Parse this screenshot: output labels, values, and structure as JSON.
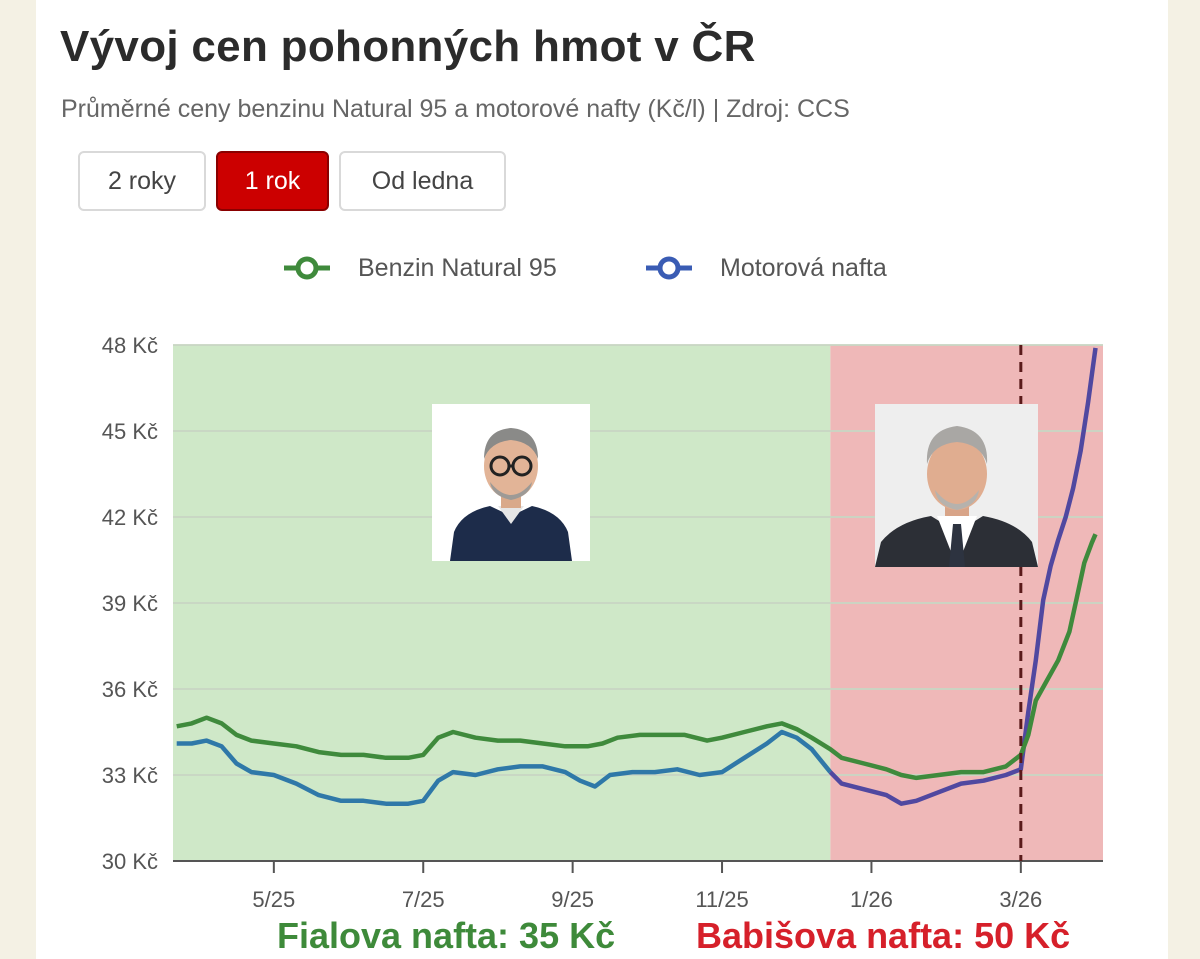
{
  "title": "Vývoj cen pohonných hmot v ČR",
  "subtitle": "Průměrné ceny benzinu Natural 95 a motorové nafty (Kč/l) | Zdroj: CCS",
  "range_buttons": [
    {
      "label": "2 roky",
      "active": false
    },
    {
      "label": "1 rok",
      "active": true
    },
    {
      "label": "Od ledna",
      "active": false
    }
  ],
  "colors": {
    "benzin": "#3f8a3c",
    "nafta_before": "#2f78a8",
    "nafta_after": "#5048a0",
    "green_zone": "#cfe8c8",
    "red_zone": "#efb8b8",
    "accent_button": "#cc0000",
    "dashed_marker": "#5a1a1a"
  },
  "captions": {
    "left": "Fialova nafta: 35 Kč",
    "right": "Babišova nafta: 50 Kč"
  },
  "chart_data": {
    "type": "line",
    "title": "Vývoj cen pohonných hmot v ČR",
    "xlabel": "",
    "ylabel": "",
    "ylim": [
      30,
      48
    ],
    "y_ticks": [
      30,
      33,
      36,
      39,
      42,
      45,
      48
    ],
    "y_tick_suffix": " Kč",
    "x_ticks": [
      "5/25",
      "7/25",
      "9/25",
      "11/25",
      "1/26",
      "3/26"
    ],
    "x_tick_months": [
      4,
      6,
      8,
      10,
      12,
      14
    ],
    "xlim_months": [
      2.65,
      15.1
    ],
    "legend_position": "top-center",
    "grid": true,
    "shaded_periods": [
      {
        "from_month": 2.65,
        "to_month": 11.45,
        "color": "green"
      },
      {
        "from_month": 11.45,
        "to_month": 15.1,
        "color": "red"
      }
    ],
    "marker_month": 14.0,
    "series": [
      {
        "name": "Benzin Natural 95",
        "points": [
          [
            2.7,
            34.7
          ],
          [
            2.9,
            34.8
          ],
          [
            3.1,
            35.0
          ],
          [
            3.3,
            34.8
          ],
          [
            3.5,
            34.4
          ],
          [
            3.7,
            34.2
          ],
          [
            4.0,
            34.1
          ],
          [
            4.3,
            34.0
          ],
          [
            4.6,
            33.8
          ],
          [
            4.9,
            33.7
          ],
          [
            5.2,
            33.7
          ],
          [
            5.5,
            33.6
          ],
          [
            5.8,
            33.6
          ],
          [
            6.0,
            33.7
          ],
          [
            6.2,
            34.3
          ],
          [
            6.4,
            34.5
          ],
          [
            6.7,
            34.3
          ],
          [
            7.0,
            34.2
          ],
          [
            7.3,
            34.2
          ],
          [
            7.6,
            34.1
          ],
          [
            7.9,
            34.0
          ],
          [
            8.2,
            34.0
          ],
          [
            8.4,
            34.1
          ],
          [
            8.6,
            34.3
          ],
          [
            8.9,
            34.4
          ],
          [
            9.2,
            34.4
          ],
          [
            9.5,
            34.4
          ],
          [
            9.8,
            34.2
          ],
          [
            10.0,
            34.3
          ],
          [
            10.3,
            34.5
          ],
          [
            10.6,
            34.7
          ],
          [
            10.8,
            34.8
          ],
          [
            11.0,
            34.6
          ],
          [
            11.2,
            34.3
          ],
          [
            11.45,
            33.9
          ],
          [
            11.6,
            33.6
          ],
          [
            11.9,
            33.4
          ],
          [
            12.2,
            33.2
          ],
          [
            12.4,
            33.0
          ],
          [
            12.6,
            32.9
          ],
          [
            12.9,
            33.0
          ],
          [
            13.2,
            33.1
          ],
          [
            13.5,
            33.1
          ],
          [
            13.8,
            33.3
          ],
          [
            14.0,
            33.7
          ],
          [
            14.1,
            34.4
          ],
          [
            14.2,
            35.6
          ],
          [
            14.35,
            36.3
          ],
          [
            14.5,
            37.0
          ],
          [
            14.65,
            38.0
          ],
          [
            14.75,
            39.2
          ],
          [
            14.85,
            40.4
          ],
          [
            14.95,
            41.1
          ],
          [
            15.0,
            41.4
          ]
        ]
      },
      {
        "name": "Motorová nafta",
        "points": [
          [
            2.7,
            34.1
          ],
          [
            2.9,
            34.1
          ],
          [
            3.1,
            34.2
          ],
          [
            3.3,
            34.0
          ],
          [
            3.5,
            33.4
          ],
          [
            3.7,
            33.1
          ],
          [
            4.0,
            33.0
          ],
          [
            4.3,
            32.7
          ],
          [
            4.6,
            32.3
          ],
          [
            4.9,
            32.1
          ],
          [
            5.2,
            32.1
          ],
          [
            5.5,
            32.0
          ],
          [
            5.8,
            32.0
          ],
          [
            6.0,
            32.1
          ],
          [
            6.2,
            32.8
          ],
          [
            6.4,
            33.1
          ],
          [
            6.7,
            33.0
          ],
          [
            7.0,
            33.2
          ],
          [
            7.3,
            33.3
          ],
          [
            7.6,
            33.3
          ],
          [
            7.9,
            33.1
          ],
          [
            8.1,
            32.8
          ],
          [
            8.3,
            32.6
          ],
          [
            8.5,
            33.0
          ],
          [
            8.8,
            33.1
          ],
          [
            9.1,
            33.1
          ],
          [
            9.4,
            33.2
          ],
          [
            9.7,
            33.0
          ],
          [
            10.0,
            33.1
          ],
          [
            10.3,
            33.6
          ],
          [
            10.6,
            34.1
          ],
          [
            10.8,
            34.5
          ],
          [
            11.0,
            34.3
          ],
          [
            11.2,
            33.9
          ],
          [
            11.45,
            33.1
          ],
          [
            11.6,
            32.7
          ],
          [
            11.9,
            32.5
          ],
          [
            12.2,
            32.3
          ],
          [
            12.4,
            32.0
          ],
          [
            12.6,
            32.1
          ],
          [
            12.9,
            32.4
          ],
          [
            13.2,
            32.7
          ],
          [
            13.5,
            32.8
          ],
          [
            13.8,
            33.0
          ],
          [
            14.0,
            33.2
          ],
          [
            14.1,
            35.2
          ],
          [
            14.2,
            37.0
          ],
          [
            14.3,
            39.1
          ],
          [
            14.4,
            40.3
          ],
          [
            14.5,
            41.2
          ],
          [
            14.6,
            42.0
          ],
          [
            14.7,
            43.0
          ],
          [
            14.8,
            44.3
          ],
          [
            14.9,
            46.0
          ],
          [
            15.0,
            47.9
          ]
        ]
      }
    ]
  }
}
